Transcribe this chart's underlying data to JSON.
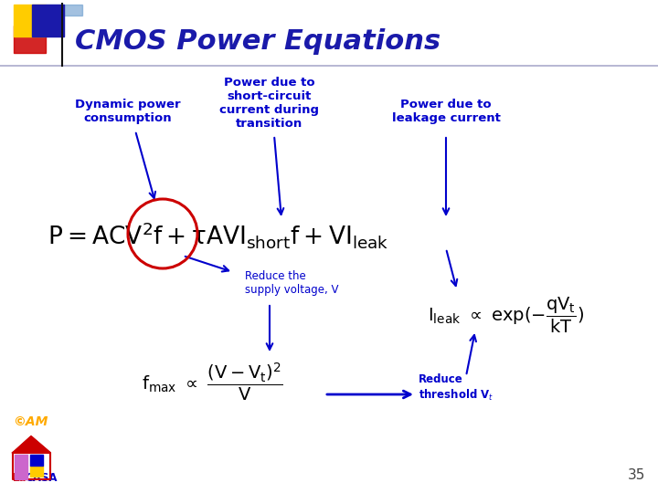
{
  "title": "CMOS Power Equations",
  "title_color": "#1a1aaa",
  "title_fontsize": 22,
  "bg_color": "#ffffff",
  "label1": "Dynamic power\nconsumption",
  "label2": "Power due to\nshort-circuit\ncurrent during\ntransition",
  "label3": "Power due to\nleakage current",
  "label4": "Reduce the\nsupply voltage, V",
  "label_color": "#0000cc",
  "label_fontsize": 9.5,
  "eq_color": "#000000",
  "arrow_color": "#0000cc",
  "circle_color": "#cc0000",
  "page_num": "35",
  "sq_yellow": "#ffcc00",
  "sq_red": "#cc0000",
  "sq_blue": "#1a1aaa",
  "sq_bluelight": "#6699cc",
  "lacasa_red": "#cc0000",
  "lacasa_yellow": "#ffcc00",
  "lacasa_blue": "#0000cc",
  "lacasa_purple": "#9933cc",
  "lacasa_green": "#33aa33"
}
